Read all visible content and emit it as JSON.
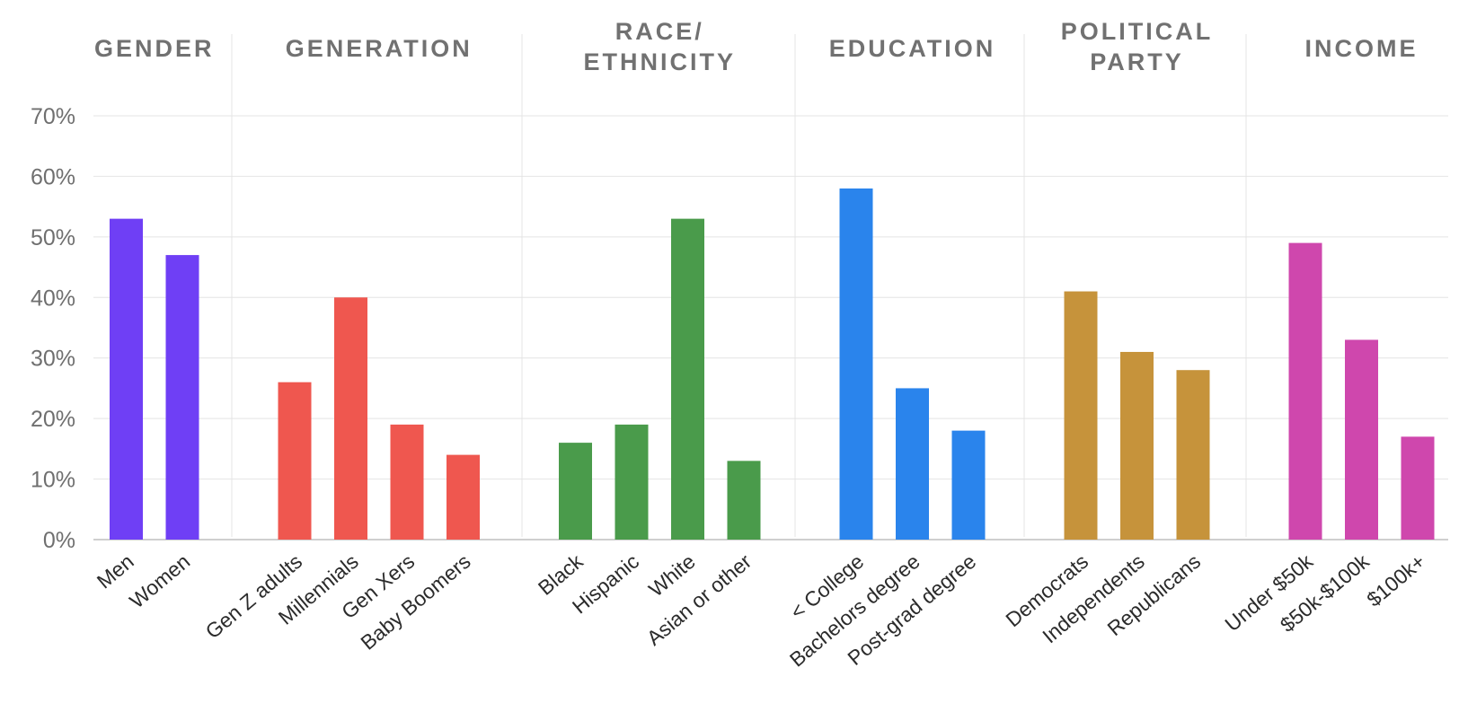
{
  "chart_data": {
    "type": "bar",
    "ylim": [
      0,
      70
    ],
    "yticks": [
      0,
      10,
      20,
      30,
      40,
      50,
      60,
      70
    ],
    "ytick_labels": [
      "0%",
      "10%",
      "20%",
      "30%",
      "40%",
      "50%",
      "60%",
      "70%"
    ],
    "grid": true,
    "groups": [
      {
        "title": [
          "GENDER"
        ],
        "color": "#6f3ff5",
        "categories": [
          "Men",
          "Women"
        ],
        "values": [
          53,
          47
        ]
      },
      {
        "title": [
          "GENERATION"
        ],
        "color": "#ef574f",
        "categories": [
          "Gen Z adults",
          "Millennials",
          "Gen Xers",
          "Baby Boomers"
        ],
        "values": [
          26,
          40,
          19,
          14
        ]
      },
      {
        "title": [
          "RACE/",
          "ETHNICITY"
        ],
        "color": "#4a9b4b",
        "categories": [
          "Black",
          "Hispanic",
          "White",
          "Asian or other"
        ],
        "values": [
          16,
          19,
          53,
          13
        ]
      },
      {
        "title": [
          "EDUCATION"
        ],
        "color": "#2a84ec",
        "categories": [
          "< College",
          "Bachelors degree",
          "Post-grad degree"
        ],
        "values": [
          58,
          25,
          18
        ]
      },
      {
        "title": [
          "POLITICAL",
          "PARTY"
        ],
        "color": "#c6933b",
        "categories": [
          "Democrats",
          "Independents",
          "Republicans"
        ],
        "values": [
          41,
          31,
          28
        ]
      },
      {
        "title": [
          "INCOME"
        ],
        "color": "#cf47ad",
        "categories": [
          "Under $50k",
          "$50k-$100k",
          "$100k+"
        ],
        "values": [
          49,
          33,
          17
        ]
      }
    ]
  }
}
